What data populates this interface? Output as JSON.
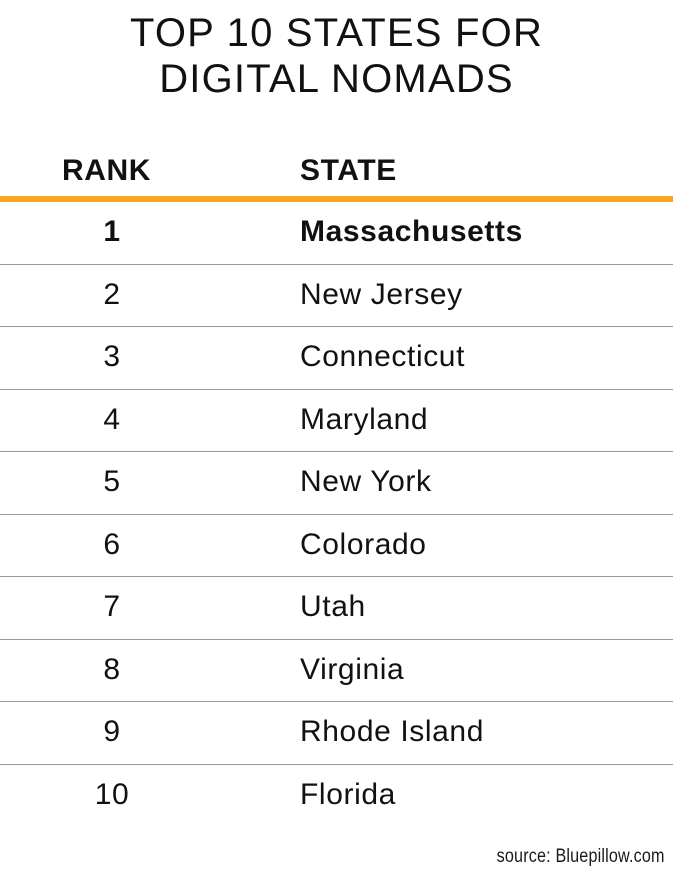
{
  "chart_data": {
    "type": "table",
    "title_lines": [
      "TOP 10 STATES FOR",
      "DIGITAL NOMADS"
    ],
    "columns": [
      "RANK",
      "STATE"
    ],
    "rows": [
      {
        "rank": "1",
        "state": "Massachusetts"
      },
      {
        "rank": "2",
        "state": "New Jersey"
      },
      {
        "rank": "3",
        "state": "Connecticut"
      },
      {
        "rank": "4",
        "state": "Maryland"
      },
      {
        "rank": "5",
        "state": "New York"
      },
      {
        "rank": "6",
        "state": "Colorado"
      },
      {
        "rank": "7",
        "state": "Utah"
      },
      {
        "rank": "8",
        "state": "Virginia"
      },
      {
        "rank": "9",
        "state": "Rhode Island"
      },
      {
        "rank": "10",
        "state": "Florida"
      }
    ],
    "highlighted_row": 0,
    "source": "source: Bluepillow.com"
  },
  "colors": {
    "accent": "#f6a623",
    "divider": "#9a9a9a",
    "text": "#111111"
  }
}
